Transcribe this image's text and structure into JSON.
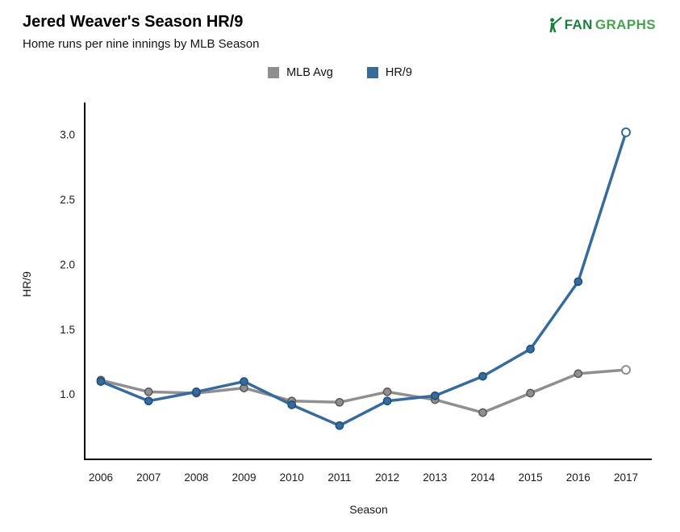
{
  "header": {
    "title": "Jered Weaver's Season HR/9",
    "subtitle": "Home runs per nine innings by MLB Season"
  },
  "logo": {
    "fan": "FAN",
    "graphs": "GRAPHS",
    "fan_color": "#17803c",
    "graphs_color": "#45a34e"
  },
  "chart_data": {
    "type": "line",
    "title": "Jered Weaver's Season HR/9",
    "subtitle": "Home runs per nine innings by MLB Season",
    "xlabel": "Season",
    "ylabel": "HR/9",
    "x": [
      2006,
      2007,
      2008,
      2009,
      2010,
      2011,
      2012,
      2013,
      2014,
      2015,
      2016,
      2017
    ],
    "yticks": [
      1.0,
      1.5,
      2.0,
      2.5,
      3.0
    ],
    "ylim": [
      0.5,
      3.2
    ],
    "grid": false,
    "legend_position": "top-center",
    "series": [
      {
        "name": "MLB Avg",
        "color": "#8f8f8f",
        "marker_edge": "#595959",
        "last_point_open": true,
        "values": [
          1.11,
          1.02,
          1.01,
          1.05,
          0.95,
          0.94,
          1.02,
          0.96,
          0.86,
          1.01,
          1.16,
          1.19
        ]
      },
      {
        "name": "HR/9",
        "color": "#366b9c",
        "marker_edge": "#1d4f7c",
        "last_point_open": true,
        "values": [
          1.1,
          0.95,
          1.02,
          1.1,
          0.92,
          0.76,
          0.95,
          0.99,
          1.14,
          1.35,
          1.87,
          3.02
        ]
      }
    ]
  }
}
